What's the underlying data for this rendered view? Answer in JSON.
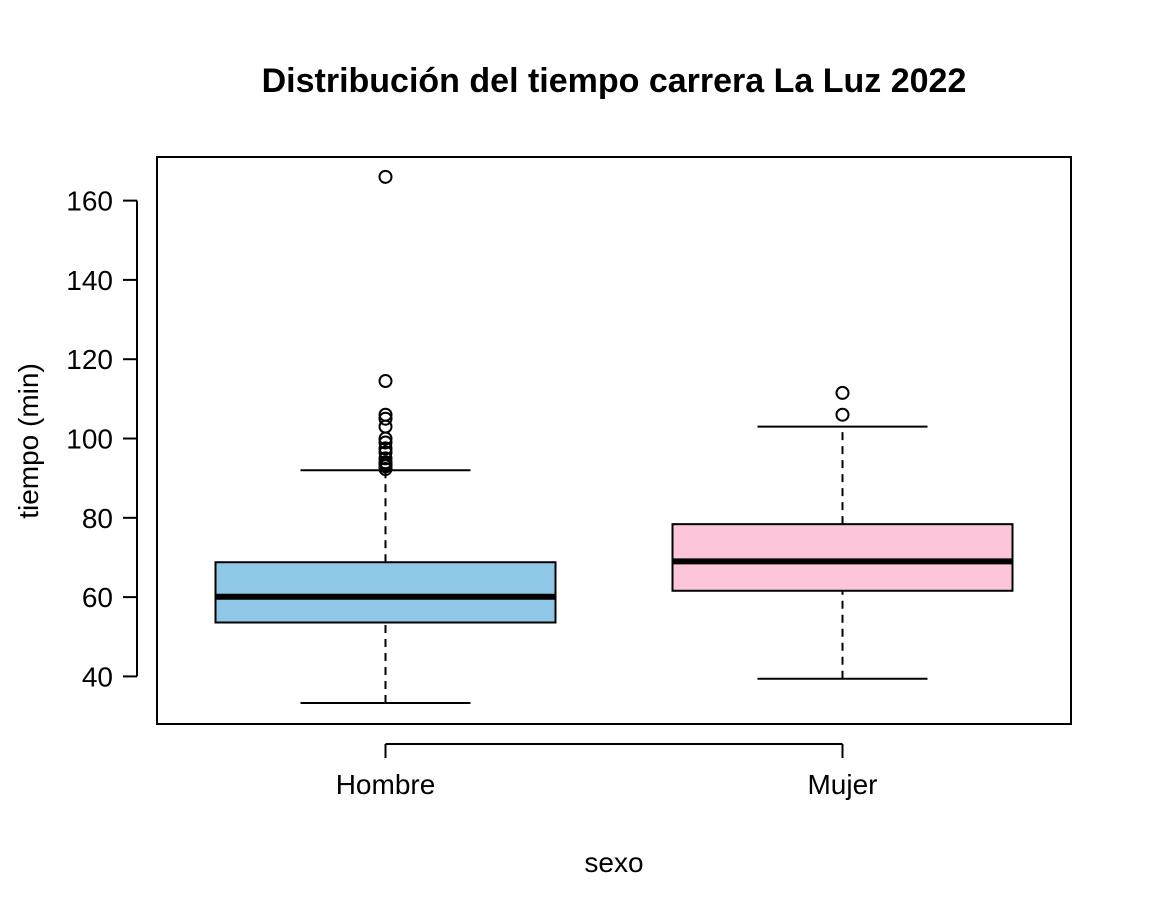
{
  "chart_data": {
    "type": "boxplot",
    "title": "Distribución del tiempo carrera La Luz 2022",
    "xlabel": "sexo",
    "ylabel": "tiempo (min)",
    "ylim": [
      28,
      171
    ],
    "yticks": [
      40,
      60,
      80,
      100,
      120,
      140,
      160
    ],
    "grid": false,
    "categories": [
      "Hombre",
      "Mujer"
    ],
    "series": [
      {
        "category": "Hombre",
        "color": "#8EC8E6",
        "whisker_low": 33.3,
        "q1": 53.6,
        "median": 60.1,
        "q3": 68.8,
        "whisker_high": 92.0,
        "outliers": [
          92.3,
          93.0,
          93.5,
          94.0,
          95.0,
          96.5,
          97.5,
          99.0,
          100.0,
          103.0,
          105.0,
          106.0,
          114.5,
          166.0
        ]
      },
      {
        "category": "Mujer",
        "color": "#FCC5DA",
        "whisker_low": 39.4,
        "q1": 61.6,
        "median": 69.0,
        "q3": 78.4,
        "whisker_high": 103.0,
        "outliers": [
          106.0,
          111.5
        ]
      }
    ]
  }
}
